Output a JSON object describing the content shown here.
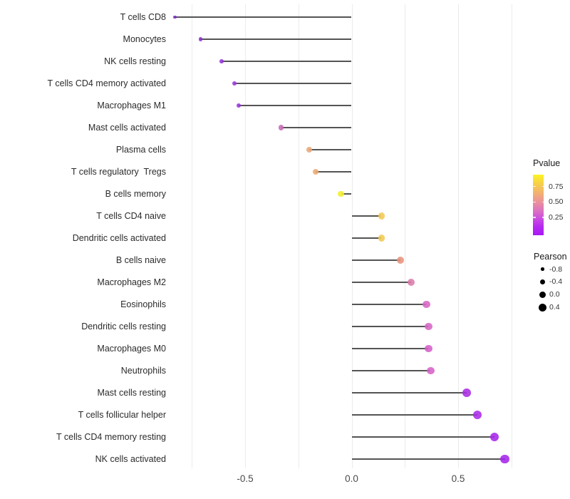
{
  "chart_data": {
    "type": "scatter",
    "style": "lollipop",
    "title": "",
    "xlabel": "",
    "ylabel": "",
    "xlim": [
      -0.85,
      1.0
    ],
    "grid": "vertical-only",
    "x_gridlines": [
      -0.75,
      -0.5,
      -0.25,
      0,
      0.25,
      0.5,
      0.75
    ],
    "x_ticks": [
      {
        "value": -0.5,
        "label": "-0.5"
      },
      {
        "value": 0.0,
        "label": "0.0"
      },
      {
        "value": 0.5,
        "label": "0.5"
      }
    ],
    "points": [
      {
        "label": "T cells CD8",
        "pearson": -0.83,
        "color": "#7B2FC2"
      },
      {
        "label": "Monocytes",
        "pearson": -0.71,
        "color": "#8D2FD3"
      },
      {
        "label": "NK cells resting",
        "pearson": -0.61,
        "color": "#9535DA"
      },
      {
        "label": "T cells CD4 memory activated",
        "pearson": -0.55,
        "color": "#9B36DE"
      },
      {
        "label": "Macrophages M1",
        "pearson": -0.53,
        "color": "#9B36DE"
      },
      {
        "label": "Mast cells activated",
        "pearson": -0.33,
        "color": "#C869B4"
      },
      {
        "label": "Plasma cells",
        "pearson": -0.2,
        "color": "#EAA878"
      },
      {
        "label": "T cells regulatory  Tregs",
        "pearson": -0.17,
        "color": "#ECAA72"
      },
      {
        "label": "B cells memory",
        "pearson": -0.05,
        "color": "#F4EE2C"
      },
      {
        "label": "T cells CD4 naive",
        "pearson": 0.14,
        "color": "#F2C952"
      },
      {
        "label": "Dendritic cells activated",
        "pearson": 0.14,
        "color": "#F2C952"
      },
      {
        "label": "B cells naive",
        "pearson": 0.23,
        "color": "#E8937B"
      },
      {
        "label": "Macrophages M2",
        "pearson": 0.28,
        "color": "#DB7BA8"
      },
      {
        "label": "Eosinophils",
        "pearson": 0.35,
        "color": "#D765C5"
      },
      {
        "label": "Dendritic cells resting",
        "pearson": 0.36,
        "color": "#D765C5"
      },
      {
        "label": "Macrophages M0",
        "pearson": 0.36,
        "color": "#D55FC8"
      },
      {
        "label": "Neutrophils",
        "pearson": 0.37,
        "color": "#D762C8"
      },
      {
        "label": "Mast cells resting",
        "pearson": 0.54,
        "color": "#AA2BE2"
      },
      {
        "label": "T cells follicular helper",
        "pearson": 0.59,
        "color": "#AA2BE6"
      },
      {
        "label": "T cells CD4 memory resting",
        "pearson": 0.67,
        "color": "#A527E9"
      },
      {
        "label": "NK cells activated",
        "pearson": 0.72,
        "color": "#A524EB"
      }
    ],
    "legend_pvalue": {
      "title": "Pvalue",
      "ticks": [
        "0.75",
        "0.50",
        "0.25"
      ],
      "gradient_top_to_bottom": [
        "#FBF323",
        "#F7D148",
        "#F3B56B",
        "#EC9695",
        "#DF77BC",
        "#CC51DE",
        "#B52BF0",
        "#A818F5"
      ]
    },
    "legend_pearson": {
      "title": "Pearson",
      "entries": [
        {
          "label": "-0.8",
          "size": 4.5
        },
        {
          "label": "-0.4",
          "size": 7.5
        },
        {
          "label": "0.0",
          "size": 9.5
        },
        {
          "label": "0.4",
          "size": 11
        }
      ]
    },
    "stem_color": "#545454",
    "gridline_color": "#ececec"
  }
}
